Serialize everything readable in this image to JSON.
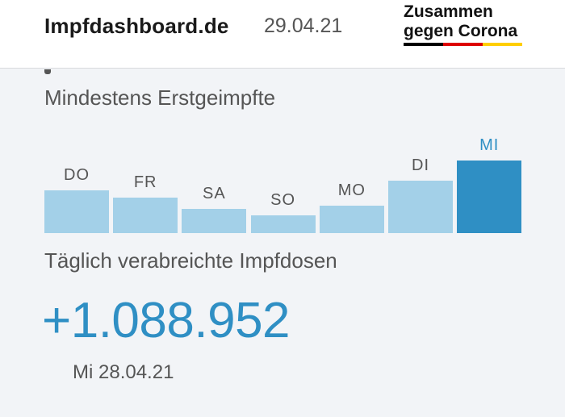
{
  "header": {
    "brand": "Impfdashboard.de",
    "date": "29.04.21",
    "logo_line1": "Zusammen",
    "logo_line2": "gegen Corona",
    "flag_colors": [
      "#000000",
      "#dd0000",
      "#ffce00"
    ]
  },
  "section": {
    "subtitle": "Mindestens Erstgeimpfte",
    "daily_title": "Täglich verabreichte Impfdosen",
    "value": "+1.088.952",
    "value_date": "Mi 28.04.21"
  },
  "colors": {
    "bar": "#a3d0e8",
    "bar_active": "#2f8fc4"
  },
  "chart_data": {
    "type": "bar",
    "categories": [
      "DO",
      "FR",
      "SA",
      "SO",
      "MO",
      "DI",
      "MI"
    ],
    "values": [
      0.584,
      0.494,
      0.337,
      0.247,
      0.382,
      0.719,
      1.0
    ],
    "highlight": "MI",
    "xlabel": "",
    "ylabel": "",
    "grid": false
  }
}
